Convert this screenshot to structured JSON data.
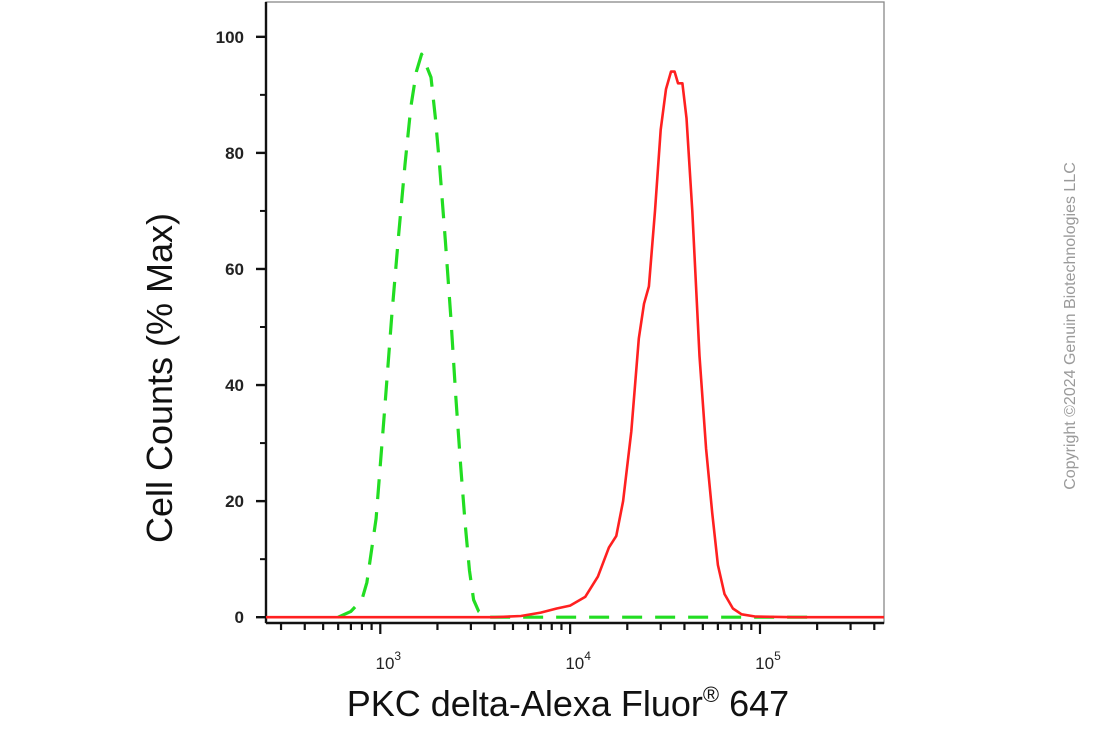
{
  "chart_data": {
    "type": "line",
    "title": "",
    "xlabel": "PKC delta-Alexa Fluor",
    "xlabel_superscript": "®",
    "xlabel_suffix": " 647",
    "ylabel": "Cell Counts (% Max)",
    "xscale": "log",
    "xlim": [
      250,
      450000
    ],
    "ylim": [
      -1,
      106
    ],
    "yticks": [
      0,
      20,
      40,
      60,
      80,
      100
    ],
    "ytick_labels": [
      "0",
      "20",
      "40",
      "60",
      "80",
      "100"
    ],
    "xticks_major": [
      1000,
      10000,
      100000
    ],
    "xtick_labels": [
      {
        "base": "10",
        "exp": "3"
      },
      {
        "base": "10",
        "exp": "4"
      },
      {
        "base": "10",
        "exp": "5"
      }
    ],
    "grid": false,
    "legend": "none",
    "series": [
      {
        "color": "#22dd22",
        "dash": true,
        "points": [
          [
            600,
            0
          ],
          [
            700,
            1
          ],
          [
            800,
            3
          ],
          [
            850,
            6
          ],
          [
            950,
            17
          ],
          [
            1050,
            35
          ],
          [
            1150,
            52
          ],
          [
            1250,
            66
          ],
          [
            1350,
            78
          ],
          [
            1450,
            88
          ],
          [
            1550,
            94
          ],
          [
            1650,
            97
          ],
          [
            1750,
            95
          ],
          [
            1850,
            93
          ],
          [
            1950,
            86
          ],
          [
            2050,
            78
          ],
          [
            2200,
            65
          ],
          [
            2350,
            52
          ],
          [
            2500,
            38
          ],
          [
            2650,
            26
          ],
          [
            2800,
            16
          ],
          [
            2950,
            8
          ],
          [
            3100,
            3
          ],
          [
            3300,
            1
          ],
          [
            3600,
            0
          ],
          [
            5000,
            0
          ],
          [
            20000,
            0
          ],
          [
            60000,
            0
          ],
          [
            200000,
            0
          ]
        ]
      },
      {
        "color": "#ff2020",
        "dash": false,
        "points": [
          [
            250,
            0
          ],
          [
            4000,
            0
          ],
          [
            5500,
            0.2
          ],
          [
            7000,
            0.8
          ],
          [
            8500,
            1.5
          ],
          [
            10000,
            2
          ],
          [
            12000,
            3.5
          ],
          [
            14000,
            7
          ],
          [
            16000,
            12
          ],
          [
            17500,
            14
          ],
          [
            19000,
            20
          ],
          [
            21000,
            32
          ],
          [
            23000,
            48
          ],
          [
            24500,
            54
          ],
          [
            26000,
            57
          ],
          [
            28000,
            70
          ],
          [
            30000,
            84
          ],
          [
            32000,
            91
          ],
          [
            34000,
            94
          ],
          [
            35500,
            94
          ],
          [
            37000,
            92
          ],
          [
            39000,
            92
          ],
          [
            41000,
            86
          ],
          [
            44000,
            70
          ],
          [
            48000,
            45
          ],
          [
            52000,
            29
          ],
          [
            56000,
            18
          ],
          [
            60000,
            9
          ],
          [
            65000,
            4
          ],
          [
            72000,
            1.5
          ],
          [
            80000,
            0.5
          ],
          [
            95000,
            0.1
          ],
          [
            150000,
            0
          ],
          [
            450000,
            0
          ]
        ]
      }
    ]
  },
  "copyright": "Copyright ©2024 Genuin Biotechnologies LLC"
}
